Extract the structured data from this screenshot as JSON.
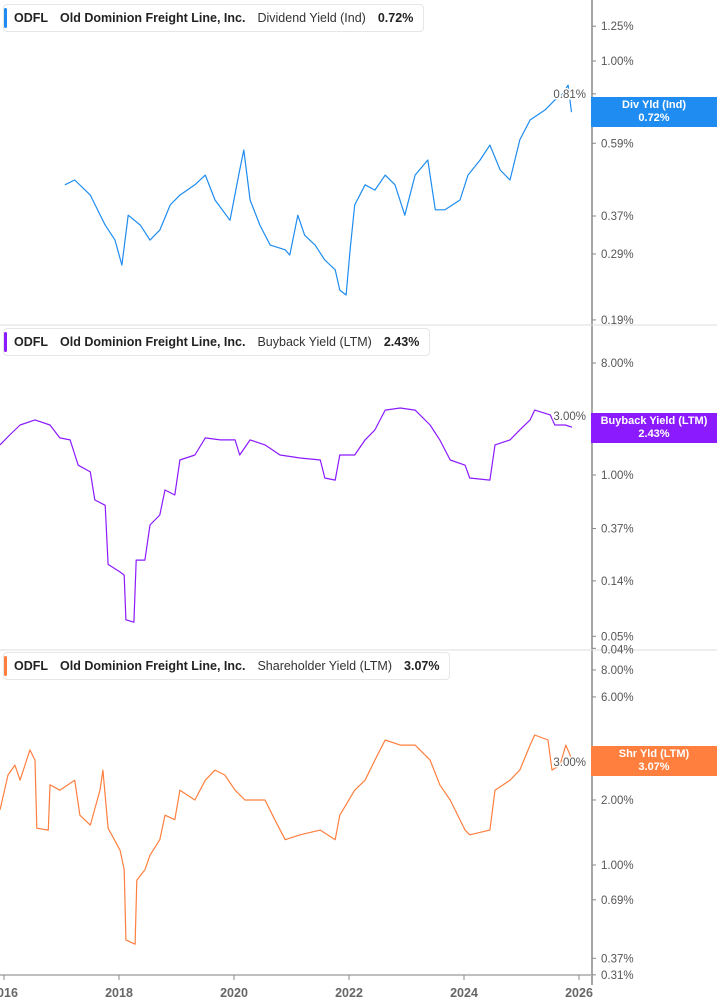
{
  "chart_data": [
    {
      "type": "line",
      "ticker": "ODFL",
      "company": "Old Dominion Freight Line, Inc.",
      "metric": "Dividend Yield (Ind)",
      "value": "0.72%",
      "tag_label": "Div Yld (Ind)",
      "tag_value": "0.72%",
      "color": "#1e8cf0",
      "yscale": "log",
      "yticks": [
        "1.25%",
        "1.00%",
        "0.81%",
        "0.59%",
        "0.37%",
        "0.29%",
        "0.19%"
      ],
      "ytick_values": [
        1.25,
        1.0,
        0.81,
        0.59,
        0.37,
        0.29,
        0.19
      ],
      "data": [
        [
          2017.06,
          0.452
        ],
        [
          2017.23,
          0.466
        ],
        [
          2017.5,
          0.423
        ],
        [
          2017.76,
          0.349
        ],
        [
          2017.93,
          0.317
        ],
        [
          2018.05,
          0.27
        ],
        [
          2018.16,
          0.372
        ],
        [
          2018.37,
          0.349
        ],
        [
          2018.54,
          0.317
        ],
        [
          2018.71,
          0.338
        ],
        [
          2018.89,
          0.397
        ],
        [
          2019.06,
          0.423
        ],
        [
          2019.32,
          0.452
        ],
        [
          2019.5,
          0.481
        ],
        [
          2019.67,
          0.41
        ],
        [
          2019.93,
          0.36
        ],
        [
          2020.1,
          0.497
        ],
        [
          2020.17,
          0.565
        ],
        [
          2020.28,
          0.41
        ],
        [
          2020.45,
          0.349
        ],
        [
          2020.63,
          0.307
        ],
        [
          2020.89,
          0.298
        ],
        [
          2020.97,
          0.288
        ],
        [
          2021.11,
          0.372
        ],
        [
          2021.23,
          0.327
        ],
        [
          2021.41,
          0.307
        ],
        [
          2021.58,
          0.279
        ],
        [
          2021.76,
          0.262
        ],
        [
          2021.84,
          0.23
        ],
        [
          2021.95,
          0.223
        ],
        [
          2022.02,
          0.298
        ],
        [
          2022.1,
          0.397
        ],
        [
          2022.28,
          0.452
        ],
        [
          2022.45,
          0.437
        ],
        [
          2022.63,
          0.481
        ],
        [
          2022.8,
          0.452
        ],
        [
          2022.97,
          0.372
        ],
        [
          2023.15,
          0.481
        ],
        [
          2023.37,
          0.53
        ],
        [
          2023.5,
          0.385
        ],
        [
          2023.67,
          0.385
        ],
        [
          2023.93,
          0.41
        ],
        [
          2024.07,
          0.481
        ],
        [
          2024.28,
          0.53
        ],
        [
          2024.45,
          0.583
        ],
        [
          2024.63,
          0.497
        ],
        [
          2024.8,
          0.466
        ],
        [
          2024.97,
          0.603
        ],
        [
          2025.15,
          0.685
        ],
        [
          2025.41,
          0.731
        ],
        [
          2025.58,
          0.778
        ],
        [
          2025.7,
          0.804
        ],
        [
          2025.81,
          0.857
        ],
        [
          2025.87,
          0.72
        ]
      ]
    },
    {
      "type": "line",
      "ticker": "ODFL",
      "company": "Old Dominion Freight Line, Inc.",
      "metric": "Buyback Yield (LTM)",
      "value": "2.43%",
      "tag_label": "Buyback Yield (LTM)",
      "tag_value": "2.43%",
      "color": "#8c1aff",
      "yscale": "log",
      "yticks": [
        "8.00%",
        "3.00%",
        "1.00%",
        "0.37%",
        "0.14%",
        "0.05%",
        "0.04%"
      ],
      "ytick_values": [
        8,
        3,
        1,
        0.37,
        0.14,
        0.05,
        0.04
      ],
      "data": [
        [
          2015.93,
          1.75
        ],
        [
          2016.1,
          2.1
        ],
        [
          2016.28,
          2.53
        ],
        [
          2016.54,
          2.78
        ],
        [
          2016.8,
          2.53
        ],
        [
          2016.97,
          1.99
        ],
        [
          2017.15,
          1.92
        ],
        [
          2017.29,
          1.2
        ],
        [
          2017.5,
          1.06
        ],
        [
          2017.58,
          0.63
        ],
        [
          2017.76,
          0.57
        ],
        [
          2017.81,
          0.19
        ],
        [
          2018.02,
          0.165
        ],
        [
          2018.09,
          0.156
        ],
        [
          2018.12,
          0.068
        ],
        [
          2018.26,
          0.065
        ],
        [
          2018.3,
          0.206
        ],
        [
          2018.45,
          0.206
        ],
        [
          2018.54,
          0.395
        ],
        [
          2018.71,
          0.476
        ],
        [
          2018.8,
          0.757
        ],
        [
          2018.97,
          0.69
        ],
        [
          2019.06,
          1.32
        ],
        [
          2019.32,
          1.45
        ],
        [
          2019.5,
          1.99
        ],
        [
          2019.76,
          1.92
        ],
        [
          2020.02,
          1.92
        ],
        [
          2020.1,
          1.45
        ],
        [
          2020.28,
          1.92
        ],
        [
          2020.54,
          1.75
        ],
        [
          2020.8,
          1.45
        ],
        [
          2021.15,
          1.37
        ],
        [
          2021.5,
          1.32
        ],
        [
          2021.58,
          0.945
        ],
        [
          2021.76,
          0.91
        ],
        [
          2021.84,
          1.45
        ],
        [
          2022.1,
          1.45
        ],
        [
          2022.28,
          1.92
        ],
        [
          2022.45,
          2.31
        ],
        [
          2022.63,
          3.34
        ],
        [
          2022.89,
          3.47
        ],
        [
          2023.15,
          3.34
        ],
        [
          2023.41,
          2.53
        ],
        [
          2023.58,
          1.92
        ],
        [
          2023.76,
          1.32
        ],
        [
          2024.02,
          1.2
        ],
        [
          2024.1,
          0.945
        ],
        [
          2024.45,
          0.91
        ],
        [
          2024.54,
          1.75
        ],
        [
          2024.8,
          1.92
        ],
        [
          2024.97,
          2.31
        ],
        [
          2025.15,
          2.78
        ],
        [
          2025.23,
          3.34
        ],
        [
          2025.5,
          3.05
        ],
        [
          2025.58,
          2.53
        ],
        [
          2025.76,
          2.53
        ],
        [
          2025.88,
          2.43
        ]
      ]
    },
    {
      "type": "line",
      "ticker": "ODFL",
      "company": "Old Dominion Freight Line, Inc.",
      "metric": "Shareholder Yield (LTM)",
      "value": "3.07%",
      "tag_label": "Shr Yld (LTM)",
      "tag_value": "3.07%",
      "color": "#ff7f3f",
      "yscale": "log",
      "yticks": [
        "8.00%",
        "6.00%",
        "3.00%",
        "2.00%",
        "1.00%",
        "0.69%",
        "0.37%",
        "0.31%"
      ],
      "ytick_values": [
        8,
        6,
        3,
        2,
        1,
        0.69,
        0.37,
        0.31
      ],
      "data": [
        [
          2015.93,
          1.8
        ],
        [
          2016.07,
          2.61
        ],
        [
          2016.19,
          2.9
        ],
        [
          2016.28,
          2.47
        ],
        [
          2016.45,
          3.41
        ],
        [
          2016.54,
          3.06
        ],
        [
          2016.57,
          1.48
        ],
        [
          2016.77,
          1.45
        ],
        [
          2016.8,
          2.35
        ],
        [
          2016.97,
          2.22
        ],
        [
          2017.23,
          2.47
        ],
        [
          2017.32,
          1.7
        ],
        [
          2017.5,
          1.53
        ],
        [
          2017.67,
          2.22
        ],
        [
          2017.72,
          2.75
        ],
        [
          2017.81,
          1.48
        ],
        [
          2018.02,
          1.17
        ],
        [
          2018.09,
          0.95
        ],
        [
          2018.12,
          0.45
        ],
        [
          2018.28,
          0.43
        ],
        [
          2018.31,
          0.85
        ],
        [
          2018.45,
          0.95
        ],
        [
          2018.54,
          1.11
        ],
        [
          2018.71,
          1.31
        ],
        [
          2018.8,
          1.7
        ],
        [
          2018.97,
          1.62
        ],
        [
          2019.06,
          2.22
        ],
        [
          2019.32,
          2.0
        ],
        [
          2019.5,
          2.47
        ],
        [
          2019.67,
          2.75
        ],
        [
          2019.84,
          2.61
        ],
        [
          2020.02,
          2.22
        ],
        [
          2020.19,
          2.0
        ],
        [
          2020.54,
          2.0
        ],
        [
          2020.71,
          1.62
        ],
        [
          2020.89,
          1.31
        ],
        [
          2021.15,
          1.38
        ],
        [
          2021.5,
          1.45
        ],
        [
          2021.76,
          1.31
        ],
        [
          2021.84,
          1.7
        ],
        [
          2022.1,
          2.22
        ],
        [
          2022.28,
          2.47
        ],
        [
          2022.45,
          3.06
        ],
        [
          2022.63,
          3.79
        ],
        [
          2022.89,
          3.59
        ],
        [
          2023.15,
          3.59
        ],
        [
          2023.41,
          3.06
        ],
        [
          2023.58,
          2.35
        ],
        [
          2023.76,
          2.0
        ],
        [
          2024.02,
          1.45
        ],
        [
          2024.1,
          1.38
        ],
        [
          2024.45,
          1.45
        ],
        [
          2024.54,
          2.22
        ],
        [
          2024.8,
          2.47
        ],
        [
          2024.97,
          2.75
        ],
        [
          2025.15,
          3.59
        ],
        [
          2025.23,
          4.0
        ],
        [
          2025.46,
          3.79
        ],
        [
          2025.53,
          2.75
        ],
        [
          2025.67,
          2.9
        ],
        [
          2025.77,
          3.59
        ],
        [
          2025.88,
          3.07
        ]
      ]
    }
  ],
  "xaxis": {
    "ticks": [
      "2016",
      "2018",
      "2020",
      "2022",
      "2024",
      "2026"
    ],
    "tick_values": [
      2016,
      2018,
      2020,
      2022,
      2024,
      2026
    ]
  }
}
